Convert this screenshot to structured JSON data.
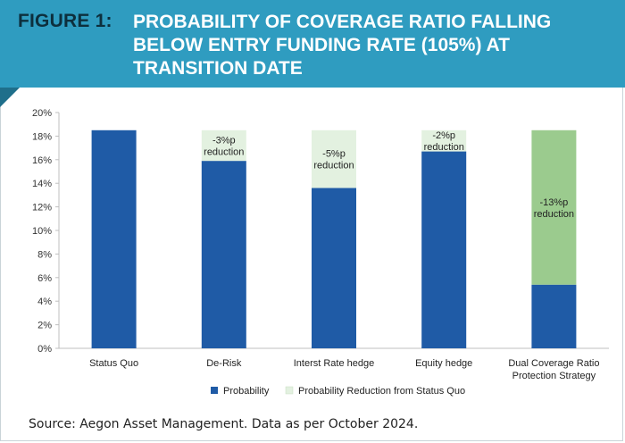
{
  "figure": {
    "label": "FIGURE 1:",
    "title_lines": [
      "PROBABILITY OF COVERAGE RATIO FALLING",
      "BELOW ENTRY FUNDING RATE (105%) AT",
      "TRANSITION DATE"
    ]
  },
  "colors": {
    "banner": "#2f9cc0",
    "probability": "#1f5ba6",
    "reduction_light": "#e3f1e0",
    "reduction_strong": "#9bcb8e"
  },
  "chart_data": {
    "type": "bar",
    "stacked": true,
    "categories": [
      "Status Quo",
      "De-Risk",
      "Interst Rate hedge",
      "Equity hedge",
      "Dual Coverage Ratio Protection Strategy"
    ],
    "category_lines": [
      [
        "Status Quo"
      ],
      [
        "De-Risk"
      ],
      [
        "Interst Rate hedge"
      ],
      [
        "Equity hedge"
      ],
      [
        "Dual Coverage Ratio",
        "Protection Strategy"
      ]
    ],
    "series": [
      {
        "name": "Probability",
        "values": [
          18.5,
          15.9,
          13.6,
          16.7,
          5.4
        ]
      },
      {
        "name": "Probability Reduction from Status Quo",
        "values": [
          0,
          2.6,
          4.9,
          1.8,
          13.1
        ]
      }
    ],
    "reduction_labels": [
      null,
      [
        "-3%p",
        "reduction"
      ],
      [
        "-5%p",
        "reduction"
      ],
      [
        "-2%p",
        "reduction"
      ],
      [
        "-13%p",
        "reduction"
      ]
    ],
    "ylim": [
      0,
      20
    ],
    "yticks": [
      "0%",
      "2%",
      "4%",
      "6%",
      "8%",
      "10%",
      "12%",
      "14%",
      "16%",
      "18%",
      "20%"
    ],
    "legend_position": "bottom",
    "xlabel": "",
    "ylabel": ""
  },
  "source": "Source: Aegon Asset Management. Data as per October 2024."
}
